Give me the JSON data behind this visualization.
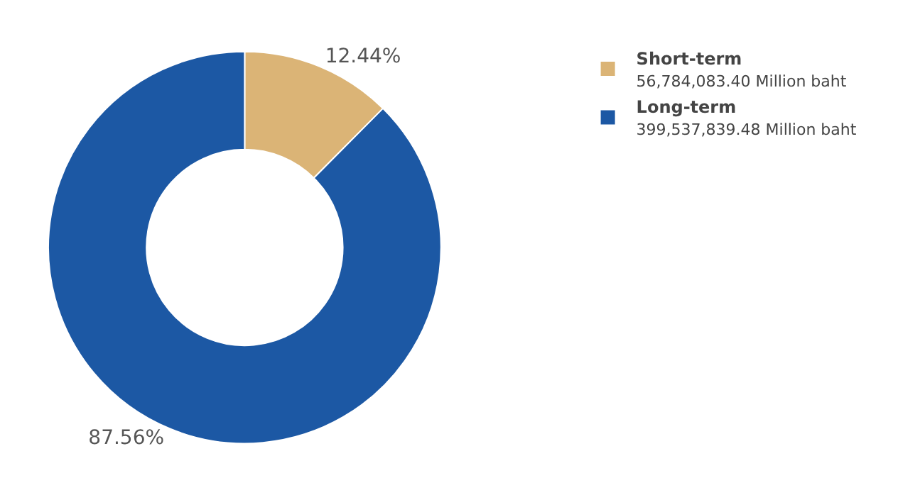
{
  "chart_data": {
    "type": "donut",
    "categories": [
      "Short-term",
      "Long-term"
    ],
    "values": [
      12.44,
      87.56
    ],
    "value_labels": [
      "12.44%",
      "87.56%"
    ],
    "colors": [
      "#dbb476",
      "#1c58a4"
    ],
    "annotations": [
      "56,784,083.40 Million baht",
      "399,537,839.48 Million baht"
    ],
    "legend": "top right"
  }
}
